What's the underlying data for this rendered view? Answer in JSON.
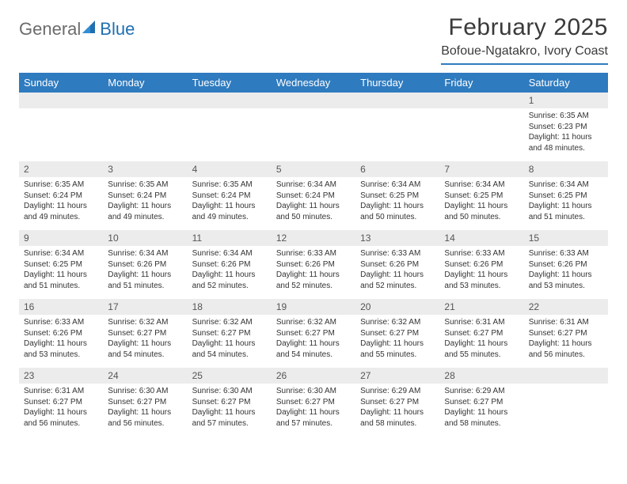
{
  "brand": {
    "word1": "General",
    "word2": "Blue"
  },
  "title": "February 2025",
  "location": "Bofoue-Ngatakro, Ivory Coast",
  "colors": {
    "header_bg": "#2f7bbf",
    "header_text": "#ffffff",
    "daynum_bg": "#ececec",
    "rule": "#2f7bbf",
    "logo_gray": "#6b6b6b",
    "logo_blue": "#1f6fb0"
  },
  "day_names": [
    "Sunday",
    "Monday",
    "Tuesday",
    "Wednesday",
    "Thursday",
    "Friday",
    "Saturday"
  ],
  "weeks": [
    {
      "nums": [
        "",
        "",
        "",
        "",
        "",
        "",
        "1"
      ],
      "cells": [
        null,
        null,
        null,
        null,
        null,
        null,
        {
          "sunrise": "6:35 AM",
          "sunset": "6:23 PM",
          "daylight": "11 hours and 48 minutes."
        }
      ]
    },
    {
      "nums": [
        "2",
        "3",
        "4",
        "5",
        "6",
        "7",
        "8"
      ],
      "cells": [
        {
          "sunrise": "6:35 AM",
          "sunset": "6:24 PM",
          "daylight": "11 hours and 49 minutes."
        },
        {
          "sunrise": "6:35 AM",
          "sunset": "6:24 PM",
          "daylight": "11 hours and 49 minutes."
        },
        {
          "sunrise": "6:35 AM",
          "sunset": "6:24 PM",
          "daylight": "11 hours and 49 minutes."
        },
        {
          "sunrise": "6:34 AM",
          "sunset": "6:24 PM",
          "daylight": "11 hours and 50 minutes."
        },
        {
          "sunrise": "6:34 AM",
          "sunset": "6:25 PM",
          "daylight": "11 hours and 50 minutes."
        },
        {
          "sunrise": "6:34 AM",
          "sunset": "6:25 PM",
          "daylight": "11 hours and 50 minutes."
        },
        {
          "sunrise": "6:34 AM",
          "sunset": "6:25 PM",
          "daylight": "11 hours and 51 minutes."
        }
      ]
    },
    {
      "nums": [
        "9",
        "10",
        "11",
        "12",
        "13",
        "14",
        "15"
      ],
      "cells": [
        {
          "sunrise": "6:34 AM",
          "sunset": "6:25 PM",
          "daylight": "11 hours and 51 minutes."
        },
        {
          "sunrise": "6:34 AM",
          "sunset": "6:26 PM",
          "daylight": "11 hours and 51 minutes."
        },
        {
          "sunrise": "6:34 AM",
          "sunset": "6:26 PM",
          "daylight": "11 hours and 52 minutes."
        },
        {
          "sunrise": "6:33 AM",
          "sunset": "6:26 PM",
          "daylight": "11 hours and 52 minutes."
        },
        {
          "sunrise": "6:33 AM",
          "sunset": "6:26 PM",
          "daylight": "11 hours and 52 minutes."
        },
        {
          "sunrise": "6:33 AM",
          "sunset": "6:26 PM",
          "daylight": "11 hours and 53 minutes."
        },
        {
          "sunrise": "6:33 AM",
          "sunset": "6:26 PM",
          "daylight": "11 hours and 53 minutes."
        }
      ]
    },
    {
      "nums": [
        "16",
        "17",
        "18",
        "19",
        "20",
        "21",
        "22"
      ],
      "cells": [
        {
          "sunrise": "6:33 AM",
          "sunset": "6:26 PM",
          "daylight": "11 hours and 53 minutes."
        },
        {
          "sunrise": "6:32 AM",
          "sunset": "6:27 PM",
          "daylight": "11 hours and 54 minutes."
        },
        {
          "sunrise": "6:32 AM",
          "sunset": "6:27 PM",
          "daylight": "11 hours and 54 minutes."
        },
        {
          "sunrise": "6:32 AM",
          "sunset": "6:27 PM",
          "daylight": "11 hours and 54 minutes."
        },
        {
          "sunrise": "6:32 AM",
          "sunset": "6:27 PM",
          "daylight": "11 hours and 55 minutes."
        },
        {
          "sunrise": "6:31 AM",
          "sunset": "6:27 PM",
          "daylight": "11 hours and 55 minutes."
        },
        {
          "sunrise": "6:31 AM",
          "sunset": "6:27 PM",
          "daylight": "11 hours and 56 minutes."
        }
      ]
    },
    {
      "nums": [
        "23",
        "24",
        "25",
        "26",
        "27",
        "28",
        ""
      ],
      "cells": [
        {
          "sunrise": "6:31 AM",
          "sunset": "6:27 PM",
          "daylight": "11 hours and 56 minutes."
        },
        {
          "sunrise": "6:30 AM",
          "sunset": "6:27 PM",
          "daylight": "11 hours and 56 minutes."
        },
        {
          "sunrise": "6:30 AM",
          "sunset": "6:27 PM",
          "daylight": "11 hours and 57 minutes."
        },
        {
          "sunrise": "6:30 AM",
          "sunset": "6:27 PM",
          "daylight": "11 hours and 57 minutes."
        },
        {
          "sunrise": "6:29 AM",
          "sunset": "6:27 PM",
          "daylight": "11 hours and 58 minutes."
        },
        {
          "sunrise": "6:29 AM",
          "sunset": "6:27 PM",
          "daylight": "11 hours and 58 minutes."
        },
        null
      ]
    }
  ],
  "labels": {
    "sunrise": "Sunrise:",
    "sunset": "Sunset:",
    "daylight": "Daylight:"
  }
}
